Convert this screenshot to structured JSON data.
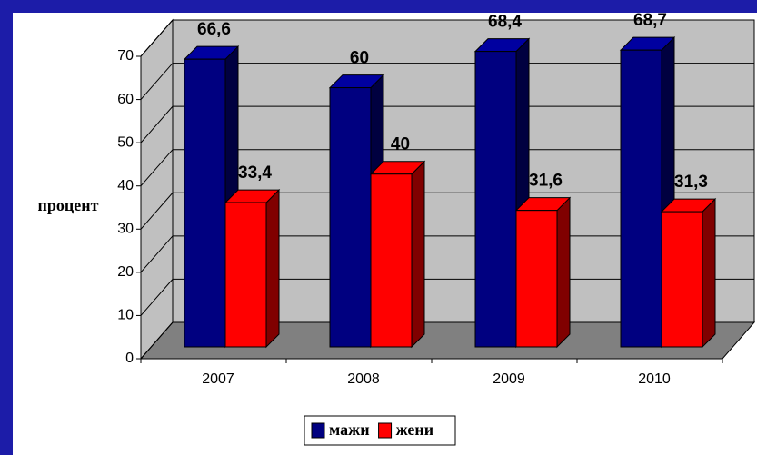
{
  "chart_data": {
    "type": "bar",
    "categories": [
      "2007",
      "2008",
      "2009",
      "2010"
    ],
    "series": [
      {
        "name": "мажи",
        "color": "#000080",
        "values": [
          66.6,
          60,
          68.4,
          68.7
        ],
        "value_labels": [
          "66,6",
          "60",
          "68,4",
          "68,7"
        ]
      },
      {
        "name": "жени",
        "color": "#ff0000",
        "values": [
          33.4,
          40,
          31.6,
          31.3
        ],
        "value_labels": [
          "33,4",
          "40",
          "31,6",
          "31,3"
        ]
      }
    ],
    "ylabel": "процент",
    "ylim": [
      0,
      70
    ],
    "yticks": [
      0,
      10,
      20,
      30,
      40,
      50,
      60,
      70
    ],
    "grid": true,
    "legend": "bottom"
  }
}
